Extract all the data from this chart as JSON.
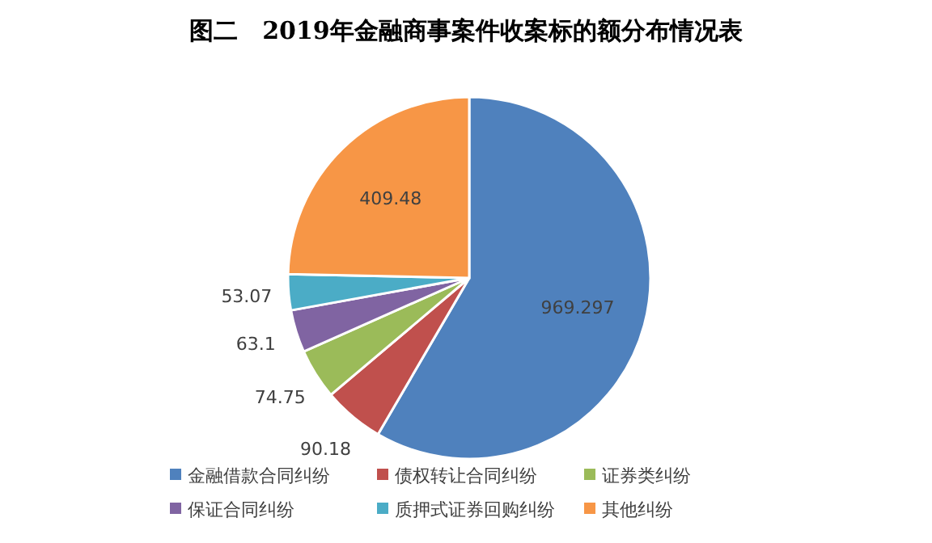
{
  "chart_data": {
    "type": "pie",
    "title": "图二　2019年金融商事案件收案标的额分布情况表",
    "categories": [
      "金融借款合同纠纷",
      "债权转让合同纠纷",
      "证券类纠纷",
      "保证合同纠纷",
      "质押式证券回购纠纷",
      "其他纠纷"
    ],
    "values": [
      969.297,
      90.18,
      74.75,
      63.1,
      53.07,
      409.48
    ],
    "colors": [
      "#4f81bd",
      "#c0504d",
      "#9bbb59",
      "#8064a2",
      "#4bacc6",
      "#f79646"
    ],
    "data_labels": true,
    "legend": "bottom"
  }
}
